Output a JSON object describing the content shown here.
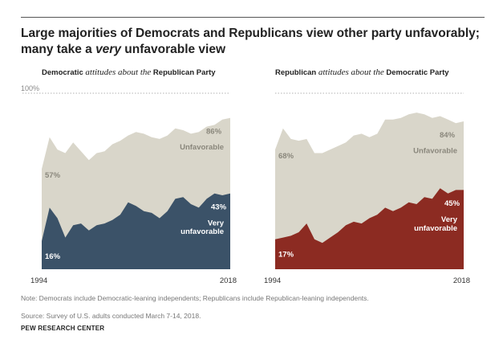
{
  "title_line1": "Large majorities of Democrats and Republicans view other party unfavorably;",
  "title_line2_pre": "many take a ",
  "title_line2_em": "very",
  "title_line2_post": " unfavorable view",
  "note": "Note: Democrats include Democratic-leaning independents; Republicans include Republican-leaning independents.",
  "source": "Source: Survey of U.S. adults conducted March 7-14, 2018.",
  "brand": "PEW RESEARCH CENTER",
  "colors": {
    "unfavorable_fill": "#d9d6ca",
    "dem_very_fill": "#3b5268",
    "rep_very_fill": "#8c2b22",
    "ref_line": "#999999"
  },
  "chart_data": [
    {
      "type": "area",
      "panel_title_pre": "Democratic ",
      "panel_title_em": "attitudes about the",
      "panel_title_post": " Republican Party",
      "ytick_label": "100%",
      "ylim": [
        0,
        100
      ],
      "x_start_label": "1994",
      "x_end_label": "2018",
      "x": [
        1994,
        1995,
        1996,
        1997,
        1998,
        1999,
        2000,
        2001,
        2002,
        2003,
        2004,
        2005,
        2006,
        2007,
        2008,
        2009,
        2010,
        2011,
        2012,
        2013,
        2014,
        2015,
        2016,
        2017,
        2018
      ],
      "series": [
        {
          "name": "Unfavorable",
          "values": [
            57,
            75,
            68,
            66,
            72,
            67,
            62,
            66,
            67,
            71,
            73,
            76,
            78,
            77,
            75,
            74,
            76,
            80,
            79,
            77,
            78,
            81,
            82,
            85,
            86
          ],
          "first_label": "57%",
          "last_label": "86%"
        },
        {
          "name": "Very unfavorable",
          "values": [
            16,
            35,
            29,
            18,
            25,
            26,
            22,
            25,
            26,
            28,
            31,
            38,
            36,
            33,
            32,
            29,
            33,
            40,
            41,
            37,
            35,
            40,
            43,
            42,
            43
          ],
          "first_label": "16%",
          "last_label": "43%",
          "label_lines": [
            "Very",
            "unfavorable"
          ]
        }
      ]
    },
    {
      "type": "area",
      "panel_title_pre": "Republican ",
      "panel_title_em": "attitudes about the",
      "panel_title_post": " Democratic Party",
      "x_start_label": "1994",
      "x_end_label": "2018",
      "ylim": [
        0,
        100
      ],
      "x": [
        1994,
        1995,
        1996,
        1997,
        1998,
        1999,
        2000,
        2001,
        2002,
        2003,
        2004,
        2005,
        2006,
        2007,
        2008,
        2009,
        2010,
        2011,
        2012,
        2013,
        2014,
        2015,
        2016,
        2017,
        2018
      ],
      "series": [
        {
          "name": "Unfavorable",
          "values": [
            68,
            80,
            74,
            73,
            74,
            66,
            66,
            68,
            70,
            72,
            76,
            77,
            75,
            77,
            85,
            85,
            86,
            88,
            89,
            88,
            86,
            87,
            85,
            83,
            84
          ],
          "first_label": "68%",
          "last_label": "84%"
        },
        {
          "name": "Very unfavorable",
          "values": [
            17,
            18,
            19,
            21,
            26,
            17,
            15,
            18,
            21,
            25,
            27,
            26,
            29,
            31,
            35,
            33,
            35,
            38,
            37,
            41,
            40,
            46,
            43,
            45,
            45
          ],
          "first_label": "17%",
          "last_label": "45%",
          "label_lines": [
            "Very",
            "unfavorable"
          ]
        }
      ]
    }
  ]
}
